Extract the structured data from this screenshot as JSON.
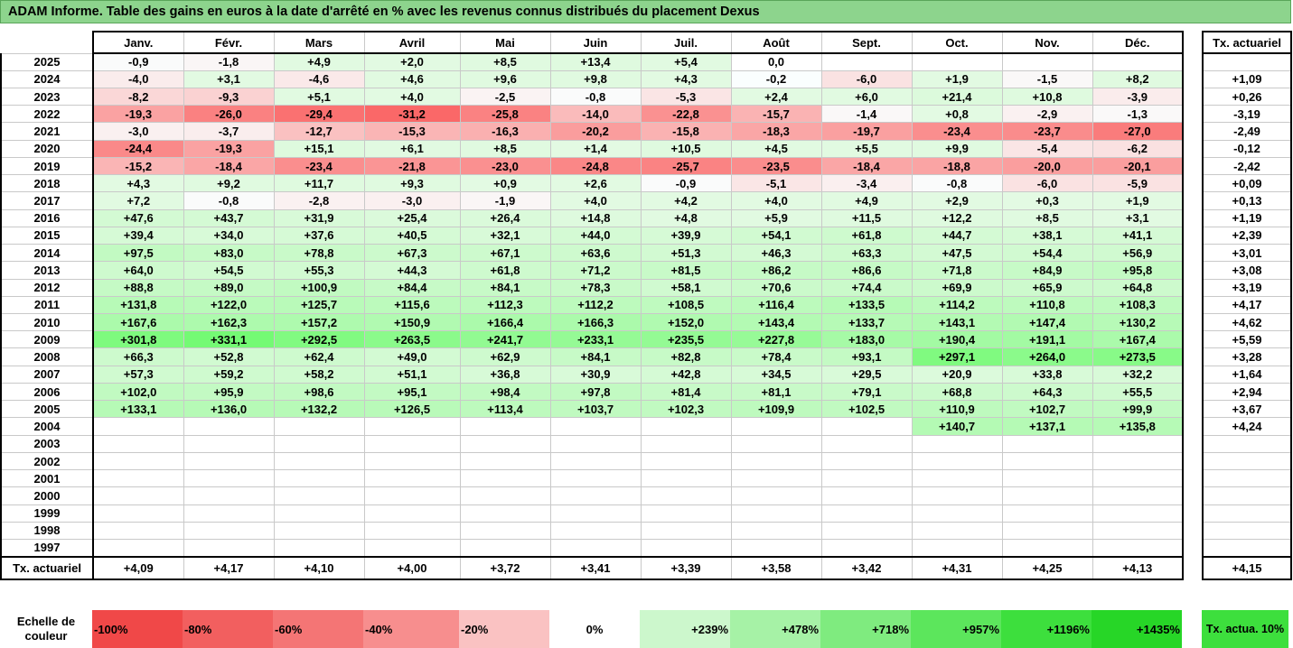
{
  "title": "ADAM Informe. Table des gains en euros à la date d'arrêté en % avec les revenus connus distribués du placement Dexus",
  "months": [
    "Janv.",
    "Févr.",
    "Mars",
    "Avril",
    "Mai",
    "Juin",
    "Juil.",
    "Août",
    "Sept.",
    "Oct.",
    "Nov.",
    "Déc."
  ],
  "tx_header": "Tx. actuariel",
  "rows": [
    {
      "year": "2025",
      "vals": [
        "-0,9",
        "-1,8",
        "+4,9",
        "+2,0",
        "+8,5",
        "+13,4",
        "+5,4",
        "0,0",
        "",
        "",
        "",
        ""
      ],
      "tx": ""
    },
    {
      "year": "2024",
      "vals": [
        "-4,0",
        "+3,1",
        "-4,6",
        "+4,6",
        "+9,6",
        "+9,8",
        "+4,3",
        "-0,2",
        "-6,0",
        "+1,9",
        "-1,5",
        "+8,2"
      ],
      "tx": "+1,09"
    },
    {
      "year": "2023",
      "vals": [
        "-8,2",
        "-9,3",
        "+5,1",
        "+4,0",
        "-2,5",
        "-0,8",
        "-5,3",
        "+2,4",
        "+6,0",
        "+21,4",
        "+10,8",
        "-3,9"
      ],
      "tx": "+0,26"
    },
    {
      "year": "2022",
      "vals": [
        "-19,3",
        "-26,0",
        "-29,4",
        "-31,2",
        "-25,8",
        "-14,0",
        "-22,8",
        "-15,7",
        "-1,4",
        "+0,8",
        "-2,9",
        "-1,3"
      ],
      "tx": "-3,19"
    },
    {
      "year": "2021",
      "vals": [
        "-3,0",
        "-3,7",
        "-12,7",
        "-15,3",
        "-16,3",
        "-20,2",
        "-15,8",
        "-18,3",
        "-19,7",
        "-23,4",
        "-23,7",
        "-27,0"
      ],
      "tx": "-2,49"
    },
    {
      "year": "2020",
      "vals": [
        "-24,4",
        "-19,3",
        "+15,1",
        "+6,1",
        "+8,5",
        "+1,4",
        "+10,5",
        "+4,5",
        "+5,5",
        "+9,9",
        "-5,4",
        "-6,2"
      ],
      "tx": "-0,12"
    },
    {
      "year": "2019",
      "vals": [
        "-15,2",
        "-18,4",
        "-23,4",
        "-21,8",
        "-23,0",
        "-24,8",
        "-25,7",
        "-23,5",
        "-18,4",
        "-18,8",
        "-20,0",
        "-20,1"
      ],
      "tx": "-2,42"
    },
    {
      "year": "2018",
      "vals": [
        "+4,3",
        "+9,2",
        "+11,7",
        "+9,3",
        "+0,9",
        "+2,6",
        "-0,9",
        "-5,1",
        "-3,4",
        "-0,8",
        "-6,0",
        "-5,9"
      ],
      "tx": "+0,09"
    },
    {
      "year": "2017",
      "vals": [
        "+7,2",
        "-0,8",
        "-2,8",
        "-3,0",
        "-1,9",
        "+4,0",
        "+4,2",
        "+4,0",
        "+4,9",
        "+2,9",
        "+0,3",
        "+1,9"
      ],
      "tx": "+0,13"
    },
    {
      "year": "2016",
      "vals": [
        "+47,6",
        "+43,7",
        "+31,9",
        "+25,4",
        "+26,4",
        "+14,8",
        "+4,8",
        "+5,9",
        "+11,5",
        "+12,2",
        "+8,5",
        "+3,1"
      ],
      "tx": "+1,19"
    },
    {
      "year": "2015",
      "vals": [
        "+39,4",
        "+34,0",
        "+37,6",
        "+40,5",
        "+32,1",
        "+44,0",
        "+39,9",
        "+54,1",
        "+61,8",
        "+44,7",
        "+38,1",
        "+41,1"
      ],
      "tx": "+2,39"
    },
    {
      "year": "2014",
      "vals": [
        "+97,5",
        "+83,0",
        "+78,8",
        "+67,3",
        "+67,1",
        "+63,6",
        "+51,3",
        "+46,3",
        "+63,3",
        "+47,5",
        "+54,4",
        "+56,9"
      ],
      "tx": "+3,01"
    },
    {
      "year": "2013",
      "vals": [
        "+64,0",
        "+54,5",
        "+55,3",
        "+44,3",
        "+61,8",
        "+71,2",
        "+81,5",
        "+86,2",
        "+86,6",
        "+71,8",
        "+84,9",
        "+95,8"
      ],
      "tx": "+3,08"
    },
    {
      "year": "2012",
      "vals": [
        "+88,8",
        "+89,0",
        "+100,9",
        "+84,4",
        "+84,1",
        "+78,3",
        "+58,1",
        "+70,6",
        "+74,4",
        "+69,9",
        "+65,9",
        "+64,8"
      ],
      "tx": "+3,19"
    },
    {
      "year": "2011",
      "vals": [
        "+131,8",
        "+122,0",
        "+125,7",
        "+115,6",
        "+112,3",
        "+112,2",
        "+108,5",
        "+116,4",
        "+133,5",
        "+114,2",
        "+110,8",
        "+108,3"
      ],
      "tx": "+4,17"
    },
    {
      "year": "2010",
      "vals": [
        "+167,6",
        "+162,3",
        "+157,2",
        "+150,9",
        "+166,4",
        "+166,3",
        "+152,0",
        "+143,4",
        "+133,7",
        "+143,1",
        "+147,4",
        "+130,2"
      ],
      "tx": "+4,62"
    },
    {
      "year": "2009",
      "vals": [
        "+301,8",
        "+331,1",
        "+292,5",
        "+263,5",
        "+241,7",
        "+233,1",
        "+235,5",
        "+227,8",
        "+183,0",
        "+190,4",
        "+191,1",
        "+167,4"
      ],
      "tx": "+5,59"
    },
    {
      "year": "2008",
      "vals": [
        "+66,3",
        "+52,8",
        "+62,4",
        "+49,0",
        "+62,9",
        "+84,1",
        "+82,8",
        "+78,4",
        "+93,1",
        "+297,1",
        "+264,0",
        "+273,5"
      ],
      "tx": "+3,28"
    },
    {
      "year": "2007",
      "vals": [
        "+57,3",
        "+59,2",
        "+58,2",
        "+51,1",
        "+36,8",
        "+30,9",
        "+42,8",
        "+34,5",
        "+29,5",
        "+20,9",
        "+33,8",
        "+32,2"
      ],
      "tx": "+1,64"
    },
    {
      "year": "2006",
      "vals": [
        "+102,0",
        "+95,9",
        "+98,6",
        "+95,1",
        "+98,4",
        "+97,8",
        "+81,4",
        "+81,1",
        "+79,1",
        "+68,8",
        "+64,3",
        "+55,5"
      ],
      "tx": "+2,94"
    },
    {
      "year": "2005",
      "vals": [
        "+133,1",
        "+136,0",
        "+132,2",
        "+126,5",
        "+113,4",
        "+103,7",
        "+102,3",
        "+109,9",
        "+102,5",
        "+110,9",
        "+102,7",
        "+99,9"
      ],
      "tx": "+3,67"
    },
    {
      "year": "2004",
      "vals": [
        "",
        "",
        "",
        "",
        "",
        "",
        "",
        "",
        "",
        "+140,7",
        "+137,1",
        "+135,8"
      ],
      "tx": "+4,24"
    },
    {
      "year": "2003",
      "vals": [
        "",
        "",
        "",
        "",
        "",
        "",
        "",
        "",
        "",
        "",
        "",
        ""
      ],
      "tx": ""
    },
    {
      "year": "2002",
      "vals": [
        "",
        "",
        "",
        "",
        "",
        "",
        "",
        "",
        "",
        "",
        "",
        ""
      ],
      "tx": ""
    },
    {
      "year": "2001",
      "vals": [
        "",
        "",
        "",
        "",
        "",
        "",
        "",
        "",
        "",
        "",
        "",
        ""
      ],
      "tx": ""
    },
    {
      "year": "2000",
      "vals": [
        "",
        "",
        "",
        "",
        "",
        "",
        "",
        "",
        "",
        "",
        "",
        ""
      ],
      "tx": ""
    },
    {
      "year": "1999",
      "vals": [
        "",
        "",
        "",
        "",
        "",
        "",
        "",
        "",
        "",
        "",
        "",
        ""
      ],
      "tx": ""
    },
    {
      "year": "1998",
      "vals": [
        "",
        "",
        "",
        "",
        "",
        "",
        "",
        "",
        "",
        "",
        "",
        ""
      ],
      "tx": ""
    },
    {
      "year": "1997",
      "vals": [
        "",
        "",
        "",
        "",
        "",
        "",
        "",
        "",
        "",
        "",
        "",
        ""
      ],
      "tx": ""
    }
  ],
  "footer": {
    "label": "Tx. actuariel",
    "vals": [
      "+4,09",
      "+4,17",
      "+4,10",
      "+4,00",
      "+3,72",
      "+3,41",
      "+3,39",
      "+3,58",
      "+3,42",
      "+4,31",
      "+4,25",
      "+4,13"
    ],
    "tx": "+4,15"
  },
  "scale": {
    "label": "Echelle de couleur",
    "items": [
      {
        "text": "-100%",
        "color": "#f04848",
        "kind": "neg"
      },
      {
        "text": "-80%",
        "color": "#f25f5f",
        "kind": "neg"
      },
      {
        "text": "-60%",
        "color": "#f47575",
        "kind": "neg"
      },
      {
        "text": "-40%",
        "color": "#f78e8e",
        "kind": "neg"
      },
      {
        "text": "-20%",
        "color": "#fac2c2",
        "kind": "neg"
      },
      {
        "text": "0%",
        "color": "#ffffff",
        "kind": "zero"
      },
      {
        "text": "+239%",
        "color": "#ccf7cc",
        "kind": "pos"
      },
      {
        "text": "+478%",
        "color": "#a6f2a6",
        "kind": "pos"
      },
      {
        "text": "+718%",
        "color": "#7feb7f",
        "kind": "pos"
      },
      {
        "text": "+957%",
        "color": "#5ce65c",
        "kind": "pos"
      },
      {
        "text": "+1196%",
        "color": "#3ddf3d",
        "kind": "pos"
      },
      {
        "text": "+1435%",
        "color": "#27d627",
        "kind": "pos"
      }
    ],
    "tx_label": "Tx. actua. 10%",
    "tx_color": "#3ddf3d"
  },
  "colors": {
    "title_bg": "#8dd48d",
    "negative": "#f04848",
    "positive": "#27d627"
  }
}
